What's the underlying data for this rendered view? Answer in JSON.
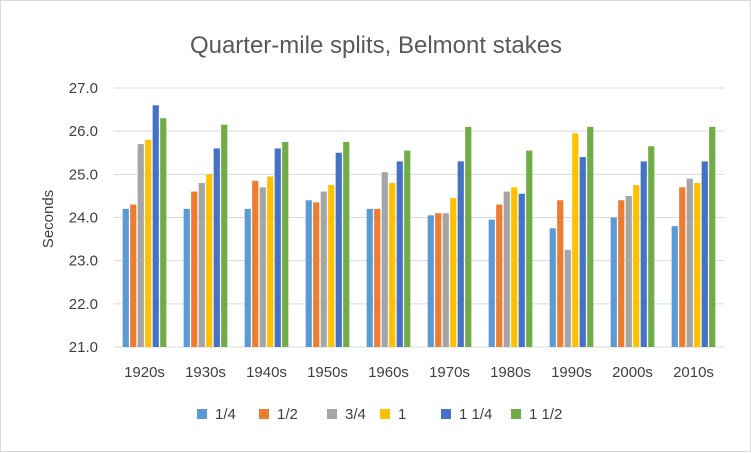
{
  "chart_data": {
    "type": "bar",
    "title": "Quarter-mile splits, Belmont stakes",
    "xlabel": "",
    "ylabel": "Seconds",
    "ylim": [
      21.0,
      27.0
    ],
    "yticks": [
      "21.0",
      "22.0",
      "23.0",
      "24.0",
      "25.0",
      "26.0",
      "27.0"
    ],
    "grid": true,
    "legend_position": "bottom",
    "categories": [
      "1920s",
      "1930s",
      "1940s",
      "1950s",
      "1960s",
      "1970s",
      "1980s",
      "1990s",
      "2000s",
      "2010s"
    ],
    "series": [
      {
        "name": "1/4",
        "color": "#5B9BD5",
        "values": [
          24.2,
          24.2,
          24.2,
          24.4,
          24.2,
          24.05,
          23.95,
          23.75,
          24.0,
          23.8
        ]
      },
      {
        "name": "1/2",
        "color": "#ED7D31",
        "values": [
          24.3,
          24.6,
          24.85,
          24.35,
          24.2,
          24.1,
          24.3,
          24.4,
          24.4,
          24.7
        ]
      },
      {
        "name": "3/4",
        "color": "#A5A5A5",
        "values": [
          25.7,
          24.8,
          24.7,
          24.6,
          25.05,
          24.1,
          24.6,
          23.25,
          24.5,
          24.9
        ]
      },
      {
        "name": "1",
        "color": "#FFC000",
        "values": [
          25.8,
          25.0,
          24.95,
          24.75,
          24.8,
          24.45,
          24.7,
          25.95,
          24.75,
          24.8
        ]
      },
      {
        "name": "1 1/4",
        "color": "#4472C4",
        "values": [
          26.6,
          25.6,
          25.6,
          25.5,
          25.3,
          25.3,
          24.55,
          25.4,
          25.3,
          25.3
        ]
      },
      {
        "name": "1 1/2",
        "color": "#70AD47",
        "values": [
          26.3,
          26.15,
          25.75,
          25.75,
          25.55,
          26.1,
          25.55,
          26.1,
          25.65,
          26.1
        ]
      }
    ]
  }
}
